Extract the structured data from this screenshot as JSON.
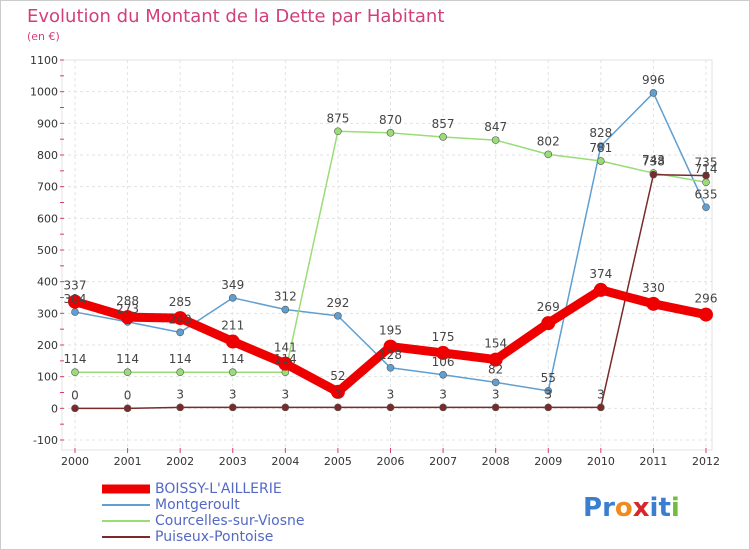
{
  "chart_data": {
    "type": "line",
    "title": "Evolution du Montant de la Dette par Habitant",
    "subtitle": "(en €)",
    "x": [
      "2000",
      "2001",
      "2002",
      "2003",
      "2004",
      "2005",
      "2006",
      "2007",
      "2008",
      "2009",
      "2010",
      "2011",
      "2012"
    ],
    "ylim": [
      -100,
      1100
    ],
    "yticks": [
      -100,
      0,
      100,
      200,
      300,
      400,
      500,
      600,
      700,
      800,
      900,
      1000,
      1100
    ],
    "grid": true,
    "legend_position": "bottom-left",
    "series": [
      {
        "name": "BOISSY-L'AILLERIE",
        "color": "#ee0000",
        "values": [
          337,
          288,
          285,
          211,
          141,
          52,
          195,
          175,
          154,
          269,
          374,
          330,
          296
        ]
      },
      {
        "name": "Montgeroult",
        "color": "#5f9fd1",
        "values": [
          304,
          273,
          240,
          349,
          312,
          292,
          128,
          106,
          82,
          55,
          828,
          996,
          635
        ]
      },
      {
        "name": "Courcelles-sur-Viosne",
        "color": "#99dd77",
        "values": [
          114,
          114,
          114,
          114,
          114,
          875,
          870,
          857,
          847,
          802,
          781,
          743,
          714
        ]
      },
      {
        "name": "Puiseux-Pontoise",
        "color": "#7a2a2a",
        "values": [
          0,
          0,
          3,
          3,
          3,
          3,
          3,
          3,
          3,
          3,
          3,
          738,
          735
        ]
      }
    ]
  },
  "brand": {
    "text": "Proxiti",
    "letters": [
      "P",
      "r",
      "o",
      "x",
      "i",
      "t",
      "i"
    ],
    "colors": [
      "#3a7fcf",
      "#3a7fcf",
      "#ee8a1e",
      "#d8262a",
      "#3a7fcf",
      "#3a7fcf",
      "#6fbf3a"
    ]
  }
}
